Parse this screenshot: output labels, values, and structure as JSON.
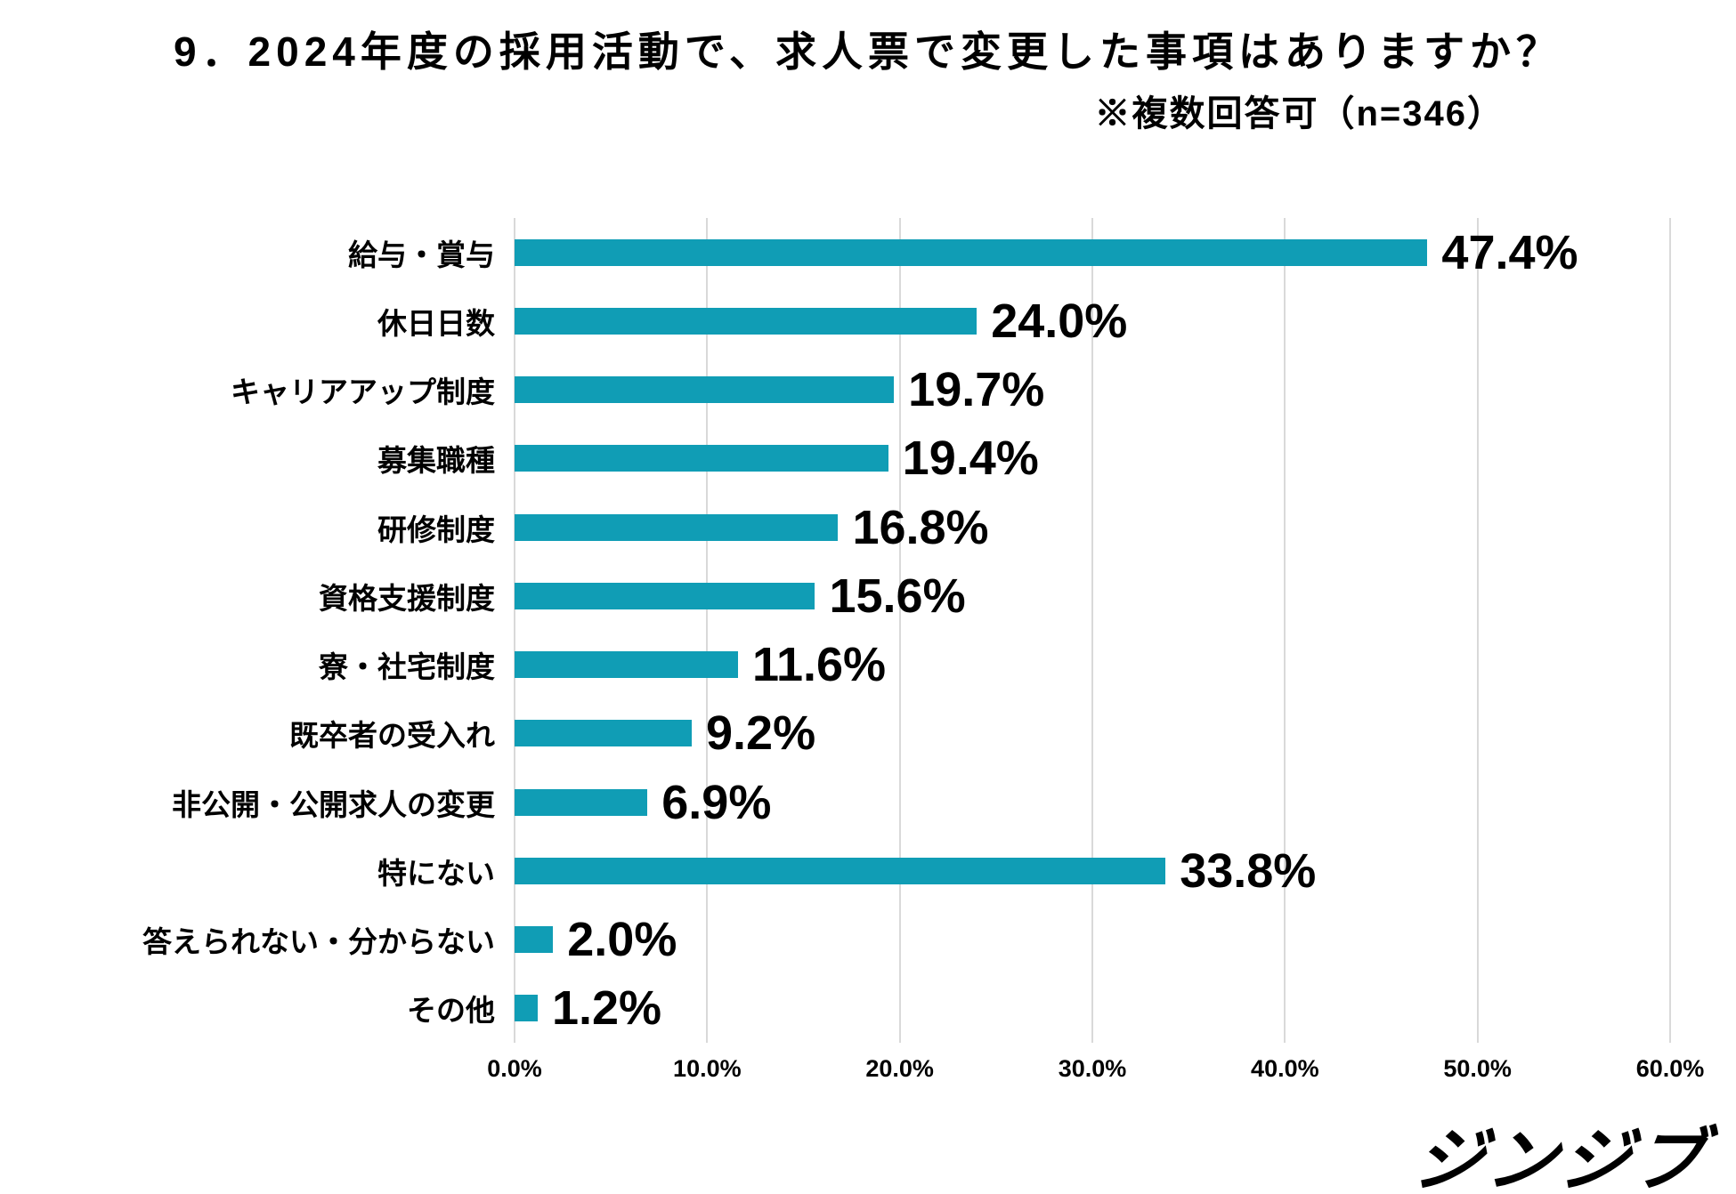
{
  "title": "9．2024年度の採用活動で、求人票で変更した事項はありますか？",
  "subtitle": "※複数回答可（n=346）",
  "logo_text": "ジンジブ",
  "colors": {
    "bar": "#109db5",
    "gridline": "#d9d9d9",
    "text": "#000000",
    "background": "#ffffff"
  },
  "chart_data": {
    "type": "bar",
    "orientation": "horizontal",
    "title": "9．2024年度の採用活動で、求人票で変更した事項はありますか？",
    "subtitle": "※複数回答可（n=346）",
    "n": 346,
    "categories": [
      "給与・賞与",
      "休日日数",
      "キャリアアップ制度",
      "募集職種",
      "研修制度",
      "資格支援制度",
      "寮・社宅制度",
      "既卒者の受入れ",
      "非公開・公開求人の変更",
      "特にない",
      "答えられない・分からない",
      "その他"
    ],
    "values": [
      47.4,
      24.0,
      19.7,
      19.4,
      16.8,
      15.6,
      11.6,
      9.2,
      6.9,
      33.8,
      2.0,
      1.2
    ],
    "value_labels": [
      "47.4%",
      "24.0%",
      "19.7%",
      "19.4%",
      "16.8%",
      "15.6%",
      "11.6%",
      "9.2%",
      "6.9%",
      "33.8%",
      "2.0%",
      "1.2%"
    ],
    "xlabel": "",
    "ylabel": "",
    "xlim": [
      0,
      60
    ],
    "x_ticks": [
      "0.0%",
      "10.0%",
      "20.0%",
      "30.0%",
      "40.0%",
      "50.0%",
      "60.0%"
    ],
    "x_tick_values": [
      0,
      10,
      20,
      30,
      40,
      50,
      60
    ],
    "grid": true,
    "legend": false
  }
}
